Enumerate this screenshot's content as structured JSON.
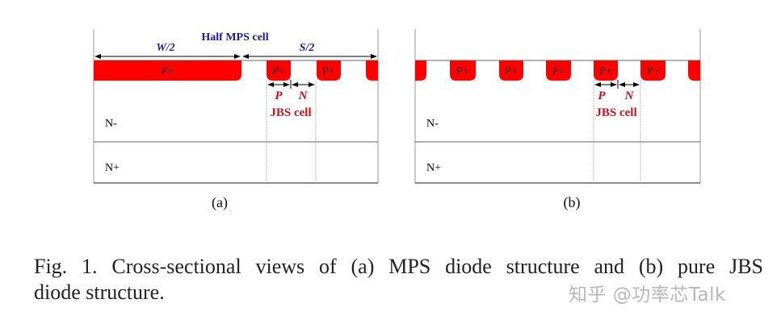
{
  "figure": {
    "panel_a": {
      "title": "Half MPS cell",
      "w_label": "W/2",
      "s_label": "S/2",
      "p_plus": "P+",
      "p_label": "P",
      "n_label": "N",
      "jbs_label": "JBS cell",
      "n_minus": "N-",
      "n_plus": "N+",
      "sublabel": "(a)"
    },
    "panel_b": {
      "p_plus": "P+",
      "p_label": "P",
      "n_label": "N",
      "jbs_label": "JBS cell",
      "n_minus": "N-",
      "n_plus": "N+",
      "sublabel": "(b)"
    },
    "colors": {
      "p_region": "#ff0000",
      "annotation_blue": "#1a1aa6",
      "annotation_red": "#d0101a"
    }
  },
  "caption": {
    "line1": "Fig. 1.   Cross-sectional views of (a) MPS diode structure and (b) pure JBS",
    "line2": "diode structure."
  },
  "watermark": "知乎 @功率芯Talk"
}
